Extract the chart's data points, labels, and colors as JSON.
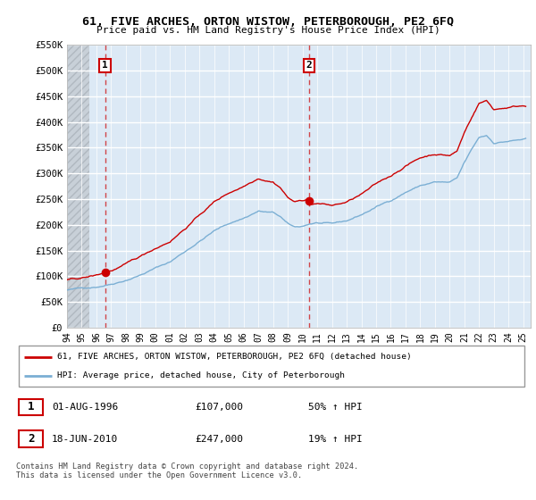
{
  "title": "61, FIVE ARCHES, ORTON WISTOW, PETERBOROUGH, PE2 6FQ",
  "subtitle": "Price paid vs. HM Land Registry's House Price Index (HPI)",
  "ylim": [
    0,
    550000
  ],
  "yticks": [
    0,
    50000,
    100000,
    150000,
    200000,
    250000,
    300000,
    350000,
    400000,
    450000,
    500000,
    550000
  ],
  "ytick_labels": [
    "£0",
    "£50K",
    "£100K",
    "£150K",
    "£200K",
    "£250K",
    "£300K",
    "£350K",
    "£400K",
    "£450K",
    "£500K",
    "£550K"
  ],
  "sale1_date": 1996.58,
  "sale1_price": 107000,
  "sale2_date": 2010.46,
  "sale2_price": 247000,
  "house_color": "#cc0000",
  "hpi_color": "#7bafd4",
  "vline_color": "#cc0000",
  "plot_bg_color": "#dce9f5",
  "hatch_color": "#c8d8e8",
  "grid_color": "#ffffff",
  "legend_line1": "61, FIVE ARCHES, ORTON WISTOW, PETERBOROUGH, PE2 6FQ (detached house)",
  "legend_line2": "HPI: Average price, detached house, City of Peterborough",
  "table_row1": [
    "1",
    "01-AUG-1996",
    "£107,000",
    "50% ↑ HPI"
  ],
  "table_row2": [
    "2",
    "18-JUN-2010",
    "£247,000",
    "19% ↑ HPI"
  ],
  "footer": "Contains HM Land Registry data © Crown copyright and database right 2024.\nThis data is licensed under the Open Government Licence v3.0.",
  "xmin": 1994.0,
  "xmax": 2025.5,
  "xtick_years": [
    1994,
    1995,
    1996,
    1997,
    1998,
    1999,
    2000,
    2001,
    2002,
    2003,
    2004,
    2005,
    2006,
    2007,
    2008,
    2009,
    2010,
    2011,
    2012,
    2013,
    2014,
    2015,
    2016,
    2017,
    2018,
    2019,
    2020,
    2021,
    2022,
    2023,
    2024,
    2025
  ]
}
